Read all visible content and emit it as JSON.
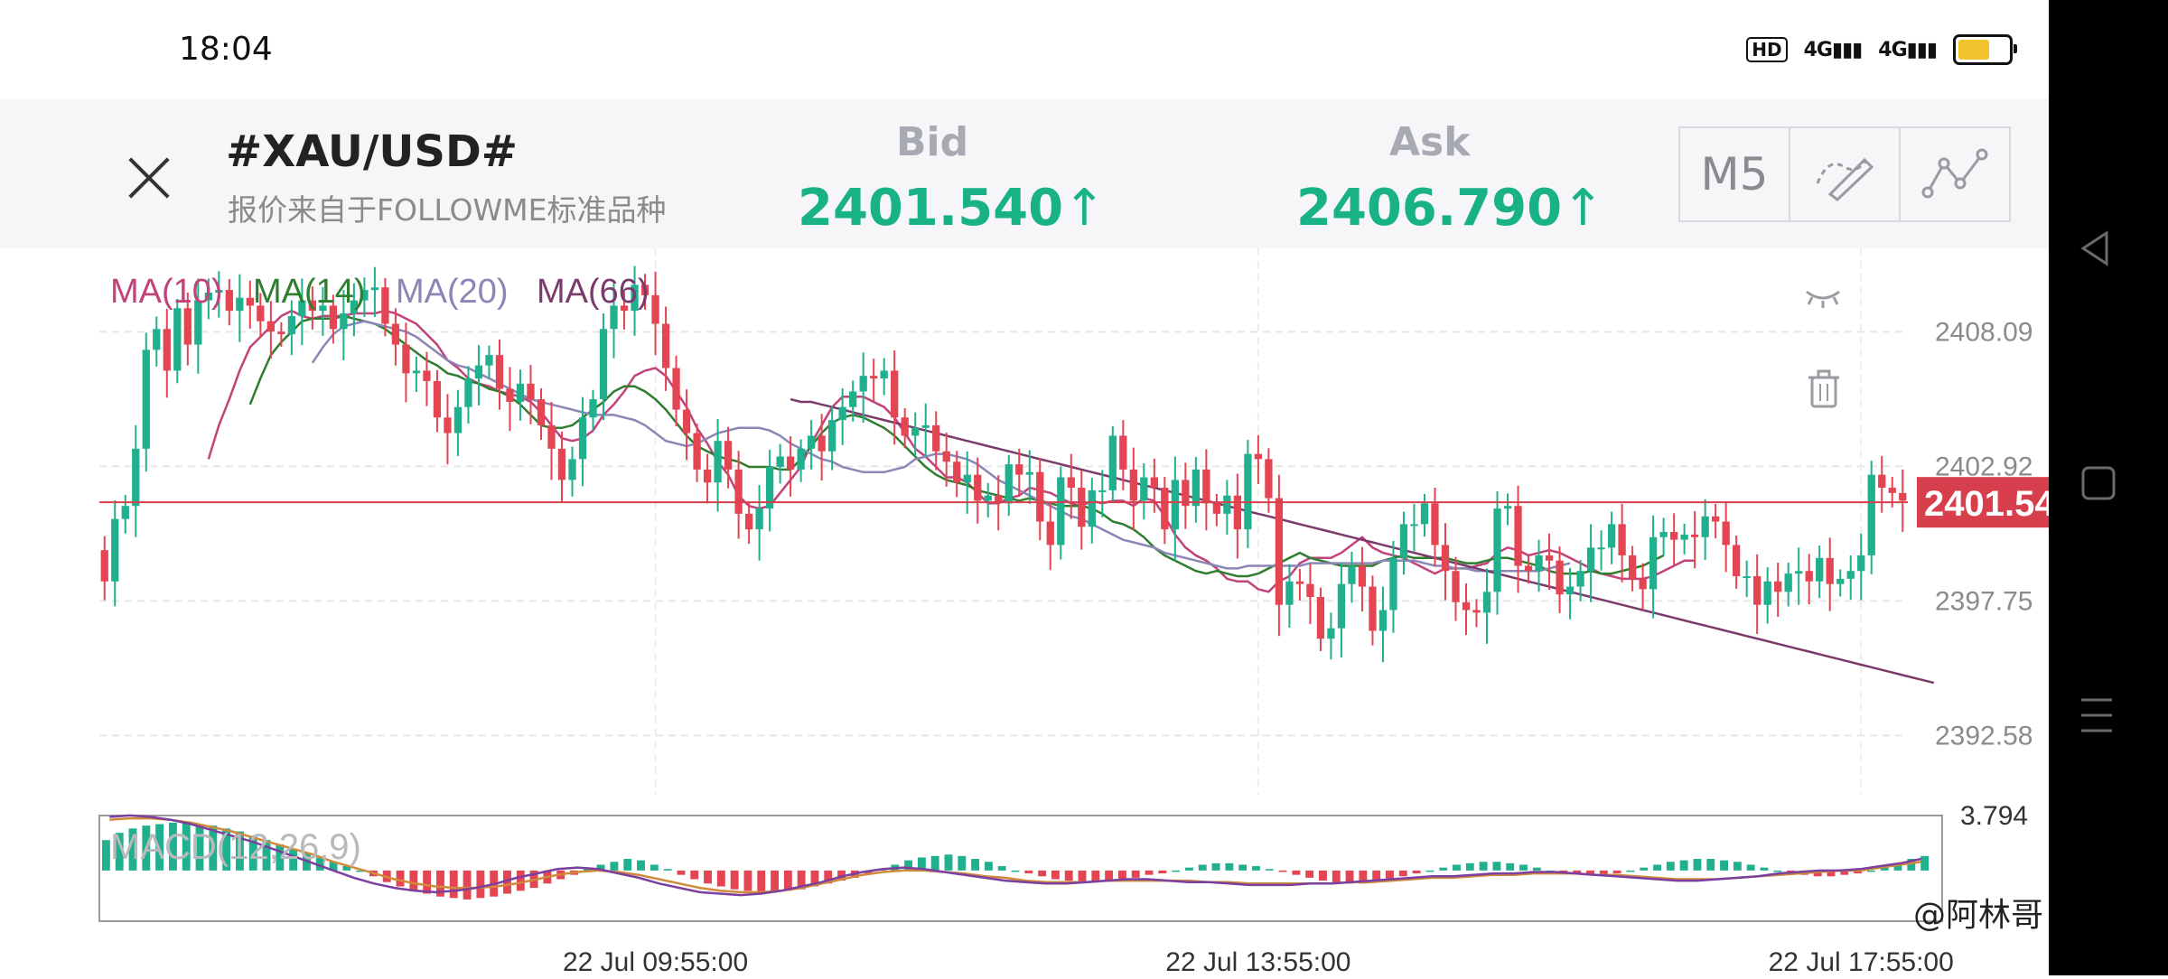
{
  "status_bar": {
    "time": "18:04",
    "icons": [
      "hd-icon",
      "signal-4g-icon",
      "signal-4g-icon",
      "battery-icon"
    ],
    "hd_text": "HD",
    "net1": "4G",
    "net2": "4G",
    "battery_color": "#f2c32c"
  },
  "header": {
    "symbol": "#XAU/USD#",
    "subtitle": "报价来自于FOLLOWME标准品种",
    "bid_label": "Bid",
    "bid_value": "2401.540",
    "ask_label": "Ask",
    "ask_value": "2406.790",
    "up_arrow": "↑",
    "quote_color": "#19b287",
    "timeframe": "M5",
    "tools": [
      "draw-brush-icon",
      "indicator-line-icon"
    ]
  },
  "nav_icons": [
    "back-triangle-icon",
    "home-square-icon",
    "menu-lines-icon"
  ],
  "watermark": "@阿林哥",
  "chart_data": [
    {
      "type": "candlestick",
      "title": "",
      "legend": [
        "MA(10)",
        "MA(14)",
        "MA(20)",
        "MA(66)"
      ],
      "legend_colors": [
        "#c2427a",
        "#2f7d2f",
        "#8b86b6",
        "#7b3a6b"
      ],
      "ylim": [
        2390.3,
        2411.3
      ],
      "y_ticks": [
        2408.09,
        2402.92,
        2397.75,
        2392.58
      ],
      "y_tick_labels": [
        "2408.09",
        "2402.92",
        "2397.75",
        "2392.58"
      ],
      "current_price": 2401.54,
      "current_price_label": "2401.54",
      "current_price_color": "#d73f4d",
      "up_color": "#21b08e",
      "down_color": "#e34553",
      "x_tick_labels": [
        "22 Jul 09:55:00",
        "22 Jul 13:55:00",
        "22 Jul 17:55:00"
      ],
      "x_tick_index": [
        53,
        111,
        169
      ],
      "close": [
        2398.5,
        2400.9,
        2401.4,
        2403.6,
        2407.4,
        2408.2,
        2406.6,
        2409,
        2407.6,
        2409.3,
        2409.6,
        2409.7,
        2408.9,
        2409.4,
        2409.1,
        2408.5,
        2408.1,
        2408,
        2408.7,
        2409.3,
        2408.9,
        2409.1,
        2408.2,
        2408.8,
        2409.3,
        2409.7,
        2409.8,
        2408.4,
        2407.6,
        2406.5,
        2406.6,
        2406.2,
        2404.8,
        2404.2,
        2405.2,
        2406.3,
        2406.8,
        2407.2,
        2405.9,
        2405.4,
        2406.1,
        2405.5,
        2404.5,
        2403.6,
        2402.4,
        2403.2,
        2404.8,
        2405.5,
        2408.2,
        2409.1,
        2408.9,
        2409.9,
        2409.5,
        2408.4,
        2406.7,
        2405.1,
        2404.2,
        2402.8,
        2402.3,
        2403.9,
        2402.8,
        2401.1,
        2400.5,
        2401.3,
        2402.9,
        2403.3,
        2402.8,
        2403.6,
        2404.1,
        2403.5,
        2404.7,
        2405.2,
        2405.8,
        2406.4,
        2406.3,
        2406.6,
        2404.8,
        2404.1,
        2404.4,
        2404.5,
        2403.5,
        2403.1,
        2402.3,
        2402.6,
        2401.6,
        2401.8,
        2401.5,
        2403,
        2402.6,
        2402.7,
        2400.8,
        2399.9,
        2402.5,
        2402.1,
        2400.6,
        2402,
        2402,
        2404.1,
        2402.8,
        2401.6,
        2402.5,
        2402.1,
        2400.5,
        2402.4,
        2401.4,
        2402.8,
        2401.5,
        2401.1,
        2401.8,
        2400.5,
        2403.4,
        2403.2,
        2401.7,
        2397.6,
        2398.5,
        2398.4,
        2397.9,
        2396.3,
        2396.7,
        2398.4,
        2399.1,
        2398.3,
        2396.6,
        2397.4,
        2399.4,
        2400.7,
        2400.7,
        2401.5,
        2399.9,
        2398.9,
        2397.7,
        2397.4,
        2397.3,
        2398.1,
        2401.3,
        2401.4,
        2399.1,
        2398.9,
        2399.5,
        2399.3,
        2398,
        2398.3,
        2398.9,
        2399.8,
        2399.8,
        2400.7,
        2399.5,
        2398.6,
        2398.2,
        2400.2,
        2400.4,
        2400.1,
        2400.3,
        2400.2,
        2401,
        2400.8,
        2399.9,
        2398.7,
        2398.7,
        2397.6,
        2398.5,
        2398.1,
        2398.8,
        2398.9,
        2398.5,
        2399.4,
        2398.4,
        2398.6,
        2398.9,
        2399.5,
        2402.6,
        2402.1,
        2401.9,
        2401.6
      ],
      "ma": [
        {
          "name": "MA(10)",
          "start": 10,
          "values": [
            2403.2,
            2404.5,
            2405.5,
            2406.6,
            2407.5,
            2407.9,
            2408.3,
            2408.7,
            2408.9,
            2408.7,
            2408.6,
            2408.7,
            2408.7,
            2408.7,
            2408.8,
            2408.8,
            2408.8,
            2408.9,
            2408.8,
            2408.6,
            2408.4,
            2408,
            2407.6,
            2407,
            2406.7,
            2406.3,
            2406.1,
            2406,
            2405.8,
            2405.7,
            2405.6,
            2405.4,
            2405,
            2404.5,
            2404,
            2403.9,
            2404,
            2404.3,
            2404.9,
            2405.3,
            2405.8,
            2406.4,
            2406.6,
            2406.7,
            2406.4,
            2405.8,
            2405.2,
            2404.4,
            2403.8,
            2403.1,
            2402.6,
            2401.8,
            2401.4,
            2401.3,
            2401.4,
            2401.9,
            2402.4,
            2402.9,
            2403.8,
            2404.5,
            2405.2,
            2405.6,
            2405.6,
            2405.6,
            2405.4,
            2405.2,
            2404.8,
            2404.2,
            2403.6,
            2403.3,
            2402.9,
            2402.5,
            2402.5,
            2402.3,
            2401.9,
            2401.5,
            2401.5,
            2401.7,
            2401.8,
            2402.1,
            2402,
            2401.9,
            2401.7,
            2401.5,
            2401.4,
            2401.6,
            2401.5,
            2401.6,
            2401.6,
            2401.4,
            2401.7,
            2401.6,
            2401,
            2400.3,
            2399.8,
            2399.5,
            2399.3,
            2399,
            2398.6,
            2398.5,
            2398.5,
            2398.2,
            2398.1,
            2398.5,
            2398.7,
            2399.2,
            2399.4,
            2399.4,
            2399.4,
            2399.6,
            2399.9,
            2400.2,
            2399.8,
            2399.6,
            2399.5,
            2399.4,
            2399.2,
            2399,
            2398.8,
            2399,
            2399,
            2399,
            2399.1,
            2399.2,
            2399.6,
            2399.8,
            2399.7,
            2399.5,
            2399.6,
            2399.7,
            2399.6,
            2399.4,
            2399.2,
            2399,
            2398.8,
            2398.7,
            2398.6,
            2398.6,
            2398.6,
            2398.7,
            2398.9,
            2399.1,
            2399.3,
            2399.3
          ]
        },
        {
          "name": "MA(14)",
          "start": 14,
          "values": [
            2405.3,
            2406.3,
            2407.2,
            2407.7,
            2408.1,
            2408.5,
            2408.6,
            2408.6,
            2408.6,
            2408.7,
            2408.6,
            2408.5,
            2408.4,
            2408.2,
            2407.9,
            2407.6,
            2407.3,
            2407,
            2406.8,
            2406.5,
            2406.4,
            2406.2,
            2406.1,
            2405.9,
            2405.8,
            2405.6,
            2405.3,
            2404.9,
            2404.5,
            2404.4,
            2404.4,
            2404.5,
            2404.8,
            2405.1,
            2405.4,
            2405.8,
            2406,
            2406,
            2405.8,
            2405.5,
            2405.1,
            2404.6,
            2404.1,
            2403.7,
            2403.5,
            2403.3,
            2403.2,
            2403.1,
            2402.9,
            2402.9,
            2402.9,
            2402.8,
            2402.8,
            2403.2,
            2403.7,
            2404.2,
            2404.6,
            2404.8,
            2404.9,
            2404.8,
            2404.6,
            2404.4,
            2404.1,
            2403.7,
            2403.3,
            2402.9,
            2402.6,
            2402.4,
            2402.3,
            2402.2,
            2402,
            2401.9,
            2401.8,
            2401.7,
            2401.6,
            2401.7,
            2401.6,
            2401.5,
            2401.4,
            2401.4,
            2401.4,
            2401.3,
            2401.1,
            2400.8,
            2400.7,
            2400.5,
            2400.2,
            2399.8,
            2399.5,
            2399.3,
            2399.1,
            2398.9,
            2398.8,
            2398.9,
            2398.8,
            2398.7,
            2398.7,
            2398.8,
            2399,
            2399.2,
            2399.4,
            2399.6,
            2399.4,
            2399.3,
            2399.2,
            2399.1,
            2399.1,
            2399.1,
            2399.1,
            2399.3,
            2399.4,
            2399.5,
            2399.4,
            2399.4,
            2399.4,
            2399.4,
            2399.3,
            2399.2,
            2399.2,
            2399.3,
            2399.4,
            2399.4,
            2399.3,
            2399.2,
            2399.1,
            2398.9,
            2398.8,
            2398.8,
            2398.8,
            2398.9,
            2398.8,
            2398.8,
            2398.9,
            2399,
            2399.1,
            2399.3,
            2399.5
          ]
        },
        {
          "name": "MA(20)",
          "start": 20,
          "values": [
            2406.9,
            2407.5,
            2408,
            2408.3,
            2408.4,
            2408.5,
            2408.4,
            2408.3,
            2408.2,
            2408.1,
            2407.9,
            2407.6,
            2407.3,
            2407,
            2406.8,
            2406.7,
            2406.5,
            2406.3,
            2406.1,
            2405.9,
            2405.7,
            2405.5,
            2405.4,
            2405.3,
            2405.2,
            2405.1,
            2405,
            2404.9,
            2404.9,
            2404.9,
            2404.8,
            2404.7,
            2404.5,
            2404.2,
            2403.9,
            2403.8,
            2403.7,
            2403.8,
            2404,
            2404.2,
            2404.3,
            2404.4,
            2404.4,
            2404.4,
            2404.3,
            2404.1,
            2403.8,
            2403.6,
            2403.4,
            2403.2,
            2403.1,
            2402.9,
            2402.8,
            2402.7,
            2402.7,
            2402.7,
            2402.8,
            2402.9,
            2403.2,
            2403.3,
            2403.4,
            2403.4,
            2403.3,
            2403.2,
            2403,
            2402.7,
            2402.4,
            2402.2,
            2402,
            2401.8,
            2401.6,
            2401.4,
            2401.2,
            2401,
            2400.9,
            2400.7,
            2400.5,
            2400.3,
            2400.1,
            2400,
            2399.9,
            2399.8,
            2399.6,
            2399.5,
            2399.4,
            2399.3,
            2399.2,
            2399.1,
            2399,
            2399,
            2399.1,
            2399.1,
            2399.1,
            2399.1,
            2399.1,
            2399.1,
            2399.2,
            2399.2,
            2399.2,
            2399.2,
            2399.2,
            2399.2,
            2399.2,
            2399.3,
            2399.3,
            2399.3,
            2399.3,
            2399.2,
            2399.1,
            2399.1,
            2399,
            2399,
            2398.9,
            2398.9,
            2398.9,
            2398.9,
            2398.9,
            2398.9,
            2398.9,
            2399,
            2399.1,
            2399.2
          ]
        },
        {
          "name": "MA(66)",
          "start": 66,
          "values": [
            2405.5,
            2405.4,
            2405.4,
            2405.3,
            2405.2,
            2405.1,
            2405,
            2404.9,
            2404.8,
            2404.7,
            2404.6,
            2404.5,
            2404.4,
            2404.3,
            2404.2,
            2404.1,
            2404,
            2403.9,
            2403.8,
            2403.7,
            2403.6,
            2403.5,
            2403.4,
            2403.3,
            2403.2,
            2403.1,
            2403,
            2402.9,
            2402.8,
            2402.7,
            2402.6,
            2402.5,
            2402.4,
            2402.3,
            2402.2,
            2402.1,
            2402,
            2401.9,
            2401.8,
            2401.7,
            2401.6,
            2401.5,
            2401.4,
            2401.3,
            2401.2,
            2401.1,
            2401,
            2400.9,
            2400.8,
            2400.7,
            2400.6,
            2400.5,
            2400.4,
            2400.3,
            2400.2,
            2400.1,
            2400,
            2399.9,
            2399.8,
            2399.7,
            2399.6,
            2399.5,
            2399.4,
            2399.3,
            2399.2,
            2399.1,
            2399,
            2398.9,
            2398.8,
            2398.7,
            2398.6,
            2398.5,
            2398.4,
            2398.3,
            2398.2,
            2398.1,
            2398,
            2397.9,
            2397.8,
            2397.7,
            2397.6,
            2397.5,
            2397.4,
            2397.3,
            2397.2,
            2397.1,
            2397,
            2396.9,
            2396.8,
            2396.7,
            2396.6,
            2396.5,
            2396.4,
            2396.3,
            2396.2,
            2396.1,
            2396,
            2395.9,
            2395.8,
            2395.7,
            2395.6,
            2395.5,
            2395.4,
            2395.3,
            2395.2,
            2395.1,
            2395,
            2394.9,
            2394.8,
            2394.7,
            2394.6
          ]
        }
      ]
    },
    {
      "type": "bar",
      "title": "MACD(12,26,9)",
      "ylim": [
        -3.5,
        3.794
      ],
      "y_tick_labels": [
        "3.794"
      ],
      "up_color": "#21b08e",
      "down_color": "#e34553",
      "line_colors": [
        "#7b3fa0",
        "#d08a3a"
      ],
      "histogram": [
        2.1,
        2.6,
        2.9,
        3.1,
        3.2,
        3.3,
        3.3,
        3.2,
        3.1,
        2.9,
        2.7,
        2.4,
        2.1,
        1.8,
        1.5,
        1.2,
        0.9,
        0.6,
        0.3,
        0,
        -0.4,
        -0.8,
        -1.1,
        -1.4,
        -1.6,
        -1.8,
        -1.9,
        -2,
        -1.9,
        -1.8,
        -1.6,
        -1.4,
        -1.2,
        -0.9,
        -0.6,
        -0.3,
        0.1,
        0.4,
        0.6,
        0.8,
        0.7,
        0.4,
        0.1,
        -0.3,
        -0.6,
        -0.9,
        -1.1,
        -1.3,
        -1.4,
        -1.5,
        -1.5,
        -1.4,
        -1.3,
        -1.1,
        -0.9,
        -0.7,
        -0.5,
        -0.2,
        0.1,
        0.4,
        0.7,
        0.9,
        1,
        1.1,
        1,
        0.8,
        0.6,
        0.3,
        0,
        -0.2,
        -0.4,
        -0.6,
        -0.7,
        -0.8,
        -0.8,
        -0.7,
        -0.6,
        -0.5,
        -0.3,
        -0.2,
        0,
        0.2,
        0.4,
        0.5,
        0.5,
        0.4,
        0.3,
        0.1,
        -0.1,
        -0.3,
        -0.5,
        -0.7,
        -0.8,
        -0.9,
        -0.9,
        -0.8,
        -0.6,
        -0.4,
        -0.2,
        0,
        0.2,
        0.4,
        0.5,
        0.6,
        0.6,
        0.5,
        0.4,
        0.2,
        0,
        -0.1,
        -0.2,
        -0.3,
        -0.3,
        -0.2,
        0,
        0.2,
        0.4,
        0.6,
        0.7,
        0.8,
        0.8,
        0.7,
        0.6,
        0.4,
        0.2,
        0,
        -0.2,
        -0.3,
        -0.4,
        -0.4,
        -0.3,
        -0.2,
        0,
        0.2,
        0.5,
        0.8,
        1
      ],
      "macd_line": [
        3.7,
        3.8,
        3.7,
        3.5,
        3.2,
        2.8,
        2.4,
        2,
        1.5,
        1,
        0.5,
        0,
        -0.5,
        -0.9,
        -1.2,
        -1.4,
        -1.5,
        -1.4,
        -1.2,
        -0.9,
        -0.5,
        -0.2,
        0.1,
        0.2,
        0.1,
        -0.2,
        -0.5,
        -0.9,
        -1.2,
        -1.5,
        -1.6,
        -1.7,
        -1.6,
        -1.4,
        -1.1,
        -0.8,
        -0.4,
        -0.1,
        0.1,
        0.2,
        0.1,
        -0.1,
        -0.3,
        -0.5,
        -0.7,
        -0.8,
        -0.9,
        -0.9,
        -0.8,
        -0.7,
        -0.6,
        -0.6,
        -0.7,
        -0.8,
        -0.8,
        -0.9,
        -1,
        -1,
        -1,
        -0.9,
        -0.9,
        -0.8,
        -0.7,
        -0.6,
        -0.5,
        -0.4,
        -0.4,
        -0.3,
        -0.2,
        -0.2,
        -0.1,
        -0.1,
        -0.2,
        -0.3,
        -0.4,
        -0.5,
        -0.6,
        -0.7,
        -0.7,
        -0.6,
        -0.5,
        -0.4,
        -0.2,
        -0.1,
        0,
        0,
        0.1,
        0.3,
        0.5,
        0.8
      ],
      "signal_line": [
        3.5,
        3.6,
        3.6,
        3.5,
        3.3,
        3,
        2.7,
        2.3,
        1.9,
        1.5,
        1.1,
        0.6,
        0.2,
        -0.2,
        -0.6,
        -0.9,
        -1.1,
        -1.2,
        -1.2,
        -1.1,
        -0.9,
        -0.6,
        -0.3,
        -0.1,
        0,
        -0.1,
        -0.3,
        -0.6,
        -0.9,
        -1.2,
        -1.4,
        -1.5,
        -1.5,
        -1.4,
        -1.2,
        -0.9,
        -0.6,
        -0.3,
        -0.1,
        0,
        0,
        -0.1,
        -0.2,
        -0.4,
        -0.5,
        -0.7,
        -0.8,
        -0.8,
        -0.8,
        -0.7,
        -0.7,
        -0.7,
        -0.7,
        -0.7,
        -0.8,
        -0.8,
        -0.9,
        -0.9,
        -0.9,
        -0.9,
        -0.9,
        -0.8,
        -0.8,
        -0.7,
        -0.6,
        -0.5,
        -0.5,
        -0.4,
        -0.3,
        -0.3,
        -0.2,
        -0.2,
        -0.2,
        -0.3,
        -0.3,
        -0.4,
        -0.5,
        -0.6,
        -0.6,
        -0.6,
        -0.5,
        -0.4,
        -0.3,
        -0.2,
        -0.1,
        0,
        0,
        0.2,
        0.4,
        0.6
      ]
    }
  ]
}
